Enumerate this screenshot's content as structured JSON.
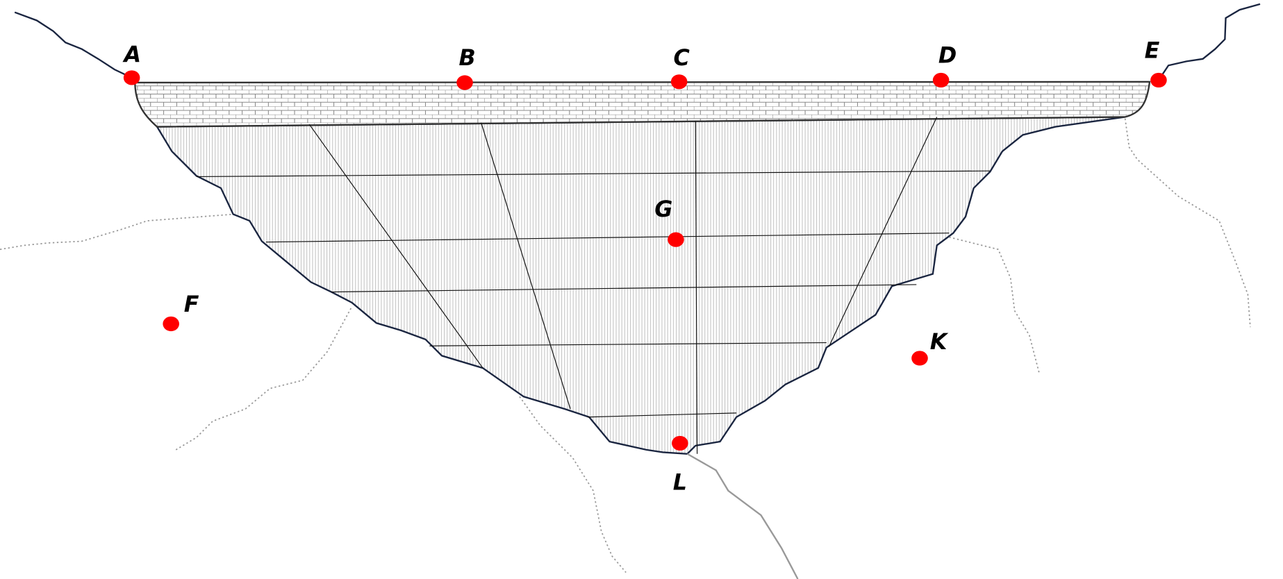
{
  "diagram": {
    "type": "dam cross-section with labelled points",
    "colors": {
      "point": "#ff0000",
      "outline": "#1a2540",
      "hatch": "#aaaaaa",
      "stream": "#888888"
    },
    "points": [
      {
        "id": "A",
        "label": "A"
      },
      {
        "id": "B",
        "label": "B"
      },
      {
        "id": "C",
        "label": "C"
      },
      {
        "id": "D",
        "label": "D"
      },
      {
        "id": "E",
        "label": "E"
      },
      {
        "id": "F",
        "label": "F"
      },
      {
        "id": "G",
        "label": "G"
      },
      {
        "id": "K",
        "label": "K"
      },
      {
        "id": "L",
        "label": "L"
      }
    ]
  }
}
